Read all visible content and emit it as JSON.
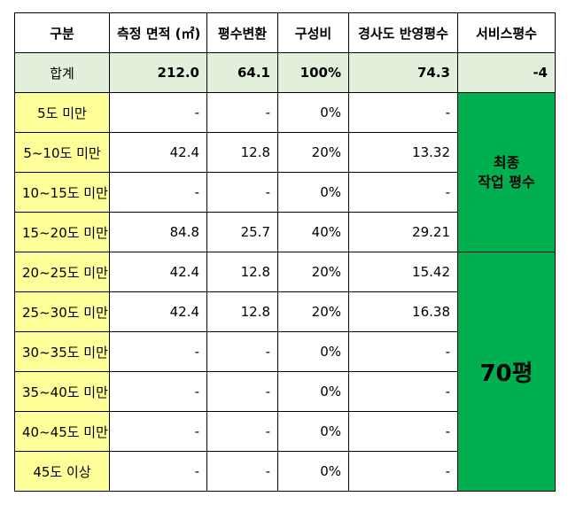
{
  "headers": [
    "구분",
    "측정 면적 (㎡)",
    "평수변환",
    "구성비",
    "경사도 반영평수",
    "서비스평수"
  ],
  "total": {
    "label": "합계",
    "area": "212.0",
    "pyeong": "64.1",
    "ratio": "100%",
    "slope_pyeong": "74.3",
    "service": "-4"
  },
  "rows": [
    {
      "label": "5도 미만",
      "area": "-",
      "pyeong": "-",
      "ratio": "0%",
      "slope_pyeong": "-"
    },
    {
      "label": "5~10도 미만",
      "area": "42.4",
      "pyeong": "12.8",
      "ratio": "20%",
      "slope_pyeong": "13.32"
    },
    {
      "label": "10~15도 미만",
      "area": "-",
      "pyeong": "-",
      "ratio": "0%",
      "slope_pyeong": "-"
    },
    {
      "label": "15~20도 미만",
      "area": "84.8",
      "pyeong": "25.7",
      "ratio": "40%",
      "slope_pyeong": "29.21"
    },
    {
      "label": "20~25도 미만",
      "area": "42.4",
      "pyeong": "12.8",
      "ratio": "20%",
      "slope_pyeong": "15.42"
    },
    {
      "label": "25~30도 미만",
      "area": "42.4",
      "pyeong": "12.8",
      "ratio": "20%",
      "slope_pyeong": "16.38"
    },
    {
      "label": "30~35도 미만",
      "area": "-",
      "pyeong": "-",
      "ratio": "0%",
      "slope_pyeong": "-"
    },
    {
      "label": "35~40도 미만",
      "area": "-",
      "pyeong": "-",
      "ratio": "0%",
      "slope_pyeong": "-"
    },
    {
      "label": "40~45도 미만",
      "area": "-",
      "pyeong": "-",
      "ratio": "0%",
      "slope_pyeong": "-"
    },
    {
      "label": "45도 이상",
      "area": "-",
      "pyeong": "-",
      "ratio": "0%",
      "slope_pyeong": "-"
    }
  ],
  "merged": {
    "final_line1": "최종",
    "final_line2": "작업 평수",
    "final_value": "70평"
  },
  "colors": {
    "label_col": "#ffff99",
    "total_row": "#e2efda",
    "merged_green": "#00b050",
    "negative": "#ff0000"
  }
}
